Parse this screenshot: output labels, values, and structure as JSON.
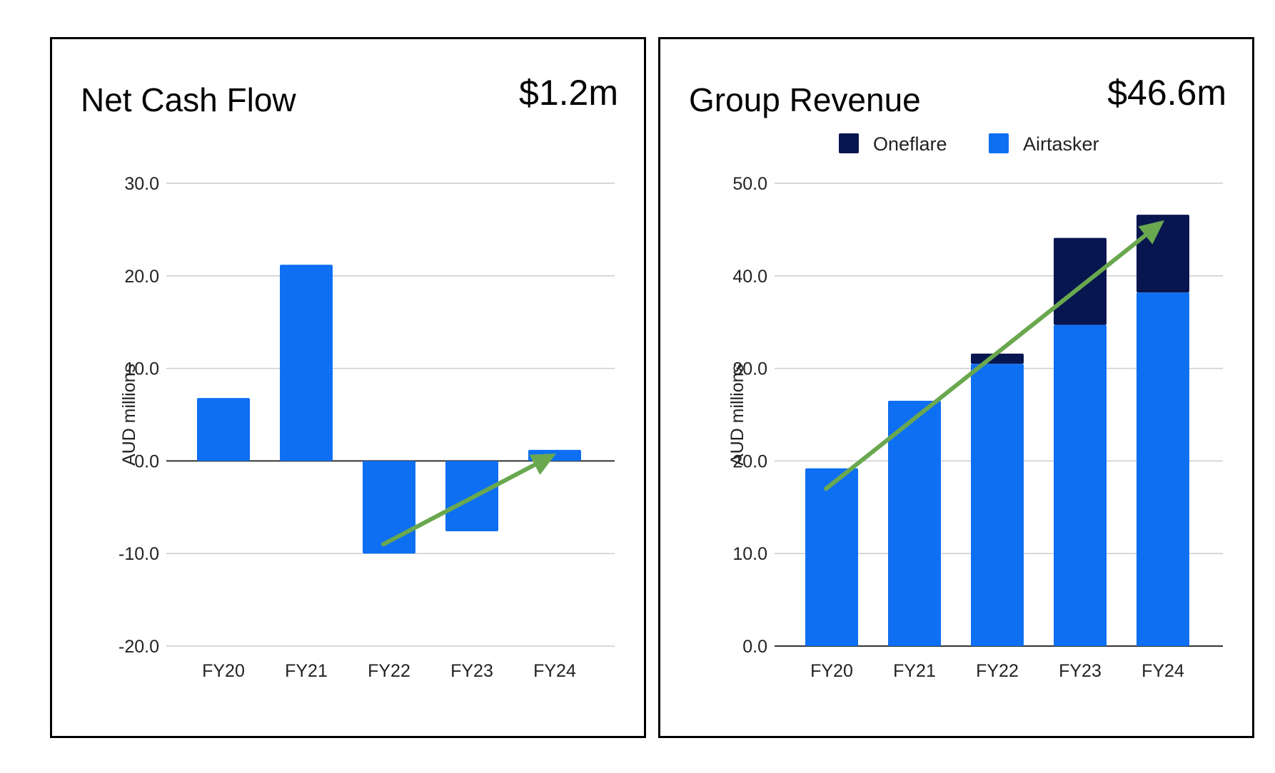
{
  "colors": {
    "primary_blue": "#0f6ff2",
    "dark_navy": "#081650",
    "trend_arrow": "#6aa84f",
    "grid": "#cccccc"
  },
  "chart_data": [
    {
      "type": "bar",
      "title": "Net Cash Flow",
      "headline_value": "$1.2m",
      "ylabel": "AUD millions",
      "xlabel": "",
      "categories": [
        "FY20",
        "FY21",
        "FY22",
        "FY23",
        "FY24"
      ],
      "series": [
        {
          "values": [
            6.8,
            21.2,
            -10.0,
            -7.6,
            1.2
          ],
          "color": "#0f6ff2"
        }
      ],
      "ylim": [
        -20,
        30
      ],
      "yticks": [
        30,
        20,
        10,
        0,
        -10,
        -20
      ],
      "ytick_labels": [
        "30.0",
        "20.0",
        "10.0",
        "0.0",
        "-10.0",
        "-20.0"
      ],
      "grid": true,
      "trend_arrow": {
        "from": [
          "FY22",
          -9.0
        ],
        "to": [
          "FY24",
          0.8
        ],
        "color": "#6aa84f"
      }
    },
    {
      "type": "bar",
      "stacked": true,
      "title": "Group Revenue",
      "headline_value": "$46.6m",
      "ylabel": "AUD millions",
      "xlabel": "",
      "categories": [
        "FY20",
        "FY21",
        "FY22",
        "FY23",
        "FY24"
      ],
      "series": [
        {
          "name": "Airtasker",
          "values": [
            19.2,
            26.5,
            30.5,
            34.7,
            38.2
          ],
          "color": "#0f6ff2"
        },
        {
          "name": "Oneflare",
          "values": [
            0.0,
            0.0,
            1.1,
            9.4,
            8.4
          ],
          "color": "#081650"
        }
      ],
      "legend_order": [
        "Oneflare",
        "Airtasker"
      ],
      "legend_position": "top",
      "ylim": [
        0,
        50
      ],
      "yticks": [
        50,
        40,
        30,
        20,
        10,
        0
      ],
      "ytick_labels": [
        "50.0",
        "40.0",
        "30.0",
        "20.0",
        "10.0",
        "0.0"
      ],
      "grid": true,
      "trend_arrow": {
        "from": [
          "FY20",
          17.0
        ],
        "to": [
          "FY24",
          46.0
        ],
        "color": "#6aa84f"
      }
    }
  ]
}
